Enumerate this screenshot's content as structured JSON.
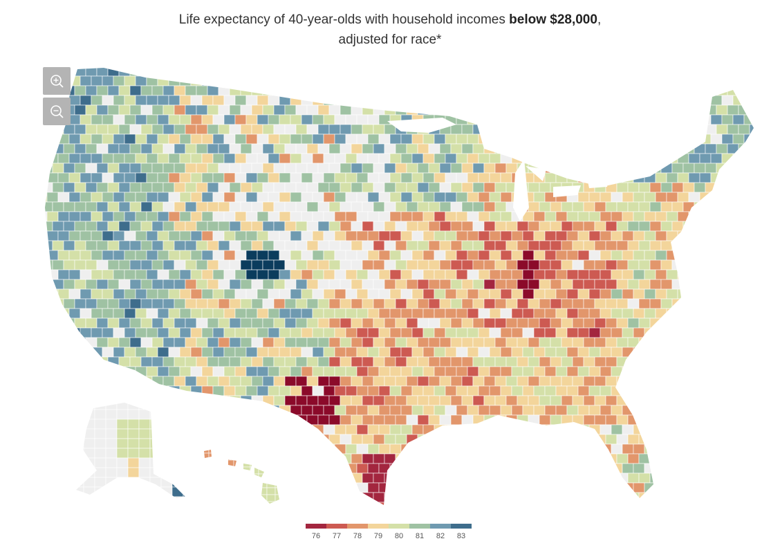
{
  "title": {
    "line1_prefix": "Life expectancy of 40-year-olds with household incomes ",
    "line1_bold": "below $28,000",
    "line1_suffix": ",",
    "line2": "adjusted for race*"
  },
  "zoom": {
    "in_icon": "zoom-in-magnifier-icon",
    "out_icon": "zoom-out-magnifier-icon"
  },
  "legend": {
    "items": [
      {
        "label": "76",
        "color": "#a3263f"
      },
      {
        "label": "77",
        "color": "#cd5a52"
      },
      {
        "label": "78",
        "color": "#e2966b"
      },
      {
        "label": "79",
        "color": "#f3d59b"
      },
      {
        "label": "80",
        "color": "#d4e0a8"
      },
      {
        "label": "81",
        "color": "#9fc2a3"
      },
      {
        "label": "82",
        "color": "#6f9ab0"
      },
      {
        "label": "83",
        "color": "#3e6d8c"
      }
    ]
  },
  "map": {
    "no_data_color": "#efefef",
    "extreme_low_color": "#8b0a2a",
    "extreme_high_color": "#0b3c5d",
    "boundary_color": "#ffffff"
  }
}
